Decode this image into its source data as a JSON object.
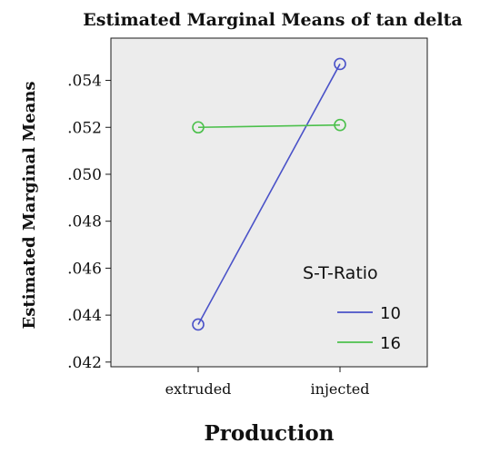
{
  "chart_data": {
    "type": "line",
    "title": "Estimated Marginal Means of tan delta",
    "xlabel": "Production",
    "ylabel": "Estimated Marginal Means",
    "categories": [
      "extruded",
      "injected"
    ],
    "ylim": [
      0.0418,
      0.0558
    ],
    "yticks": [
      ".042",
      ".044",
      ".046",
      ".048",
      ".050",
      ".052",
      ".054"
    ],
    "ytick_values": [
      0.042,
      0.044,
      0.046,
      0.048,
      0.05,
      0.052,
      0.054
    ],
    "legend_title": "S-T-Ratio",
    "legend_position": "bottom-right",
    "grid": false,
    "series": [
      {
        "name": "10",
        "color": "#4a52c8",
        "values": [
          0.0436,
          0.0547
        ]
      },
      {
        "name": "16",
        "color": "#4cc04c",
        "values": [
          0.052,
          0.0521
        ]
      }
    ],
    "plot_background": "#ececec"
  }
}
